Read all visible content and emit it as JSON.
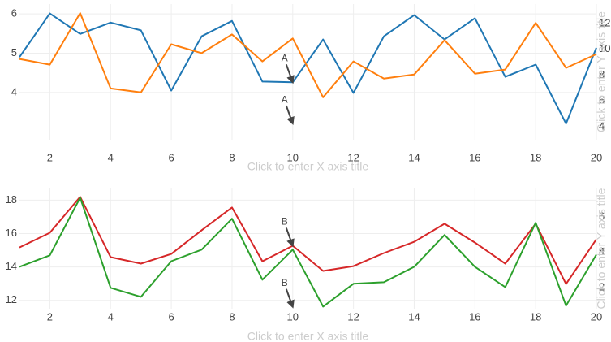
{
  "chart_data": [
    {
      "type": "line",
      "x": [
        1,
        2,
        3,
        4,
        5,
        6,
        7,
        8,
        9,
        10,
        11,
        12,
        13,
        14,
        15,
        16,
        17,
        18,
        19,
        20
      ],
      "series": [
        {
          "color": "#1f77b4",
          "axis": "y",
          "values": [
            4.9,
            6.01,
            5.49,
            5.78,
            5.58,
            4.05,
            5.43,
            5.82,
            4.28,
            4.26,
            5.35,
            3.99,
            5.43,
            5.97,
            5.35,
            5.89,
            4.4,
            4.71,
            3.21,
            5.14
          ]
        },
        {
          "color": "#ff7f0e",
          "axis": "y2",
          "values": [
            9.25,
            8.81,
            12.8,
            6.97,
            6.66,
            10.39,
            9.7,
            11.15,
            9.06,
            10.84,
            6.28,
            9.06,
            7.73,
            8.05,
            10.71,
            8.11,
            8.43,
            12.04,
            8.56,
            9.63
          ]
        }
      ],
      "xlim": [
        1,
        20
      ],
      "xticks": [
        2,
        4,
        6,
        8,
        10,
        12,
        14,
        16,
        18,
        20
      ],
      "ylim": [
        2.8,
        6.25
      ],
      "yticks": [
        4,
        5,
        6
      ],
      "y2lim": [
        3,
        13.5
      ],
      "y2ticks": [
        4,
        6,
        8,
        10,
        12
      ],
      "x_label": "Click to enter X axis title",
      "y2_label": "Click to enter Y axis title",
      "annotations": [
        {
          "text": "A",
          "x": 10,
          "y": 4.26
        },
        {
          "text": "A",
          "x": 10,
          "y": 3.21
        }
      ],
      "grid": true
    },
    {
      "type": "line",
      "x": [
        1,
        2,
        3,
        4,
        5,
        6,
        7,
        8,
        9,
        10,
        11,
        12,
        13,
        14,
        15,
        16,
        17,
        18,
        19,
        20
      ],
      "series": [
        {
          "color": "#d62728",
          "axis": "y",
          "values": [
            15.17,
            16.05,
            18.2,
            14.59,
            14.2,
            14.78,
            16.2,
            17.56,
            14.34,
            15.27,
            13.76,
            14.05,
            14.83,
            15.51,
            16.59,
            15.46,
            14.2,
            16.59,
            12.98,
            15.66
          ]
        },
        {
          "color": "#2ca02c",
          "axis": "y2",
          "values": [
            3.17,
            3.82,
            7.08,
            1.98,
            1.47,
            3.49,
            4.14,
            5.89,
            2.44,
            4.14,
            0.92,
            2.21,
            2.3,
            3.17,
            4.97,
            3.17,
            2.02,
            5.66,
            0.97,
            3.86
          ]
        }
      ],
      "xlim": [
        1,
        20
      ],
      "xticks": [
        2,
        4,
        6,
        8,
        10,
        12,
        14,
        16,
        18,
        20
      ],
      "ylim": [
        11.5,
        18.7
      ],
      "yticks": [
        12,
        14,
        16,
        18
      ],
      "y2lim": [
        0.8,
        7.6
      ],
      "y2ticks": [
        2,
        4,
        6
      ],
      "x_label": "Click to enter X axis title",
      "y2_label": "Click to enter Y axis title",
      "annotations": [
        {
          "text": "B",
          "x": 10,
          "y": 15.27
        },
        {
          "text": "B",
          "x": 10,
          "y": 11.61
        }
      ],
      "grid": true
    }
  ]
}
